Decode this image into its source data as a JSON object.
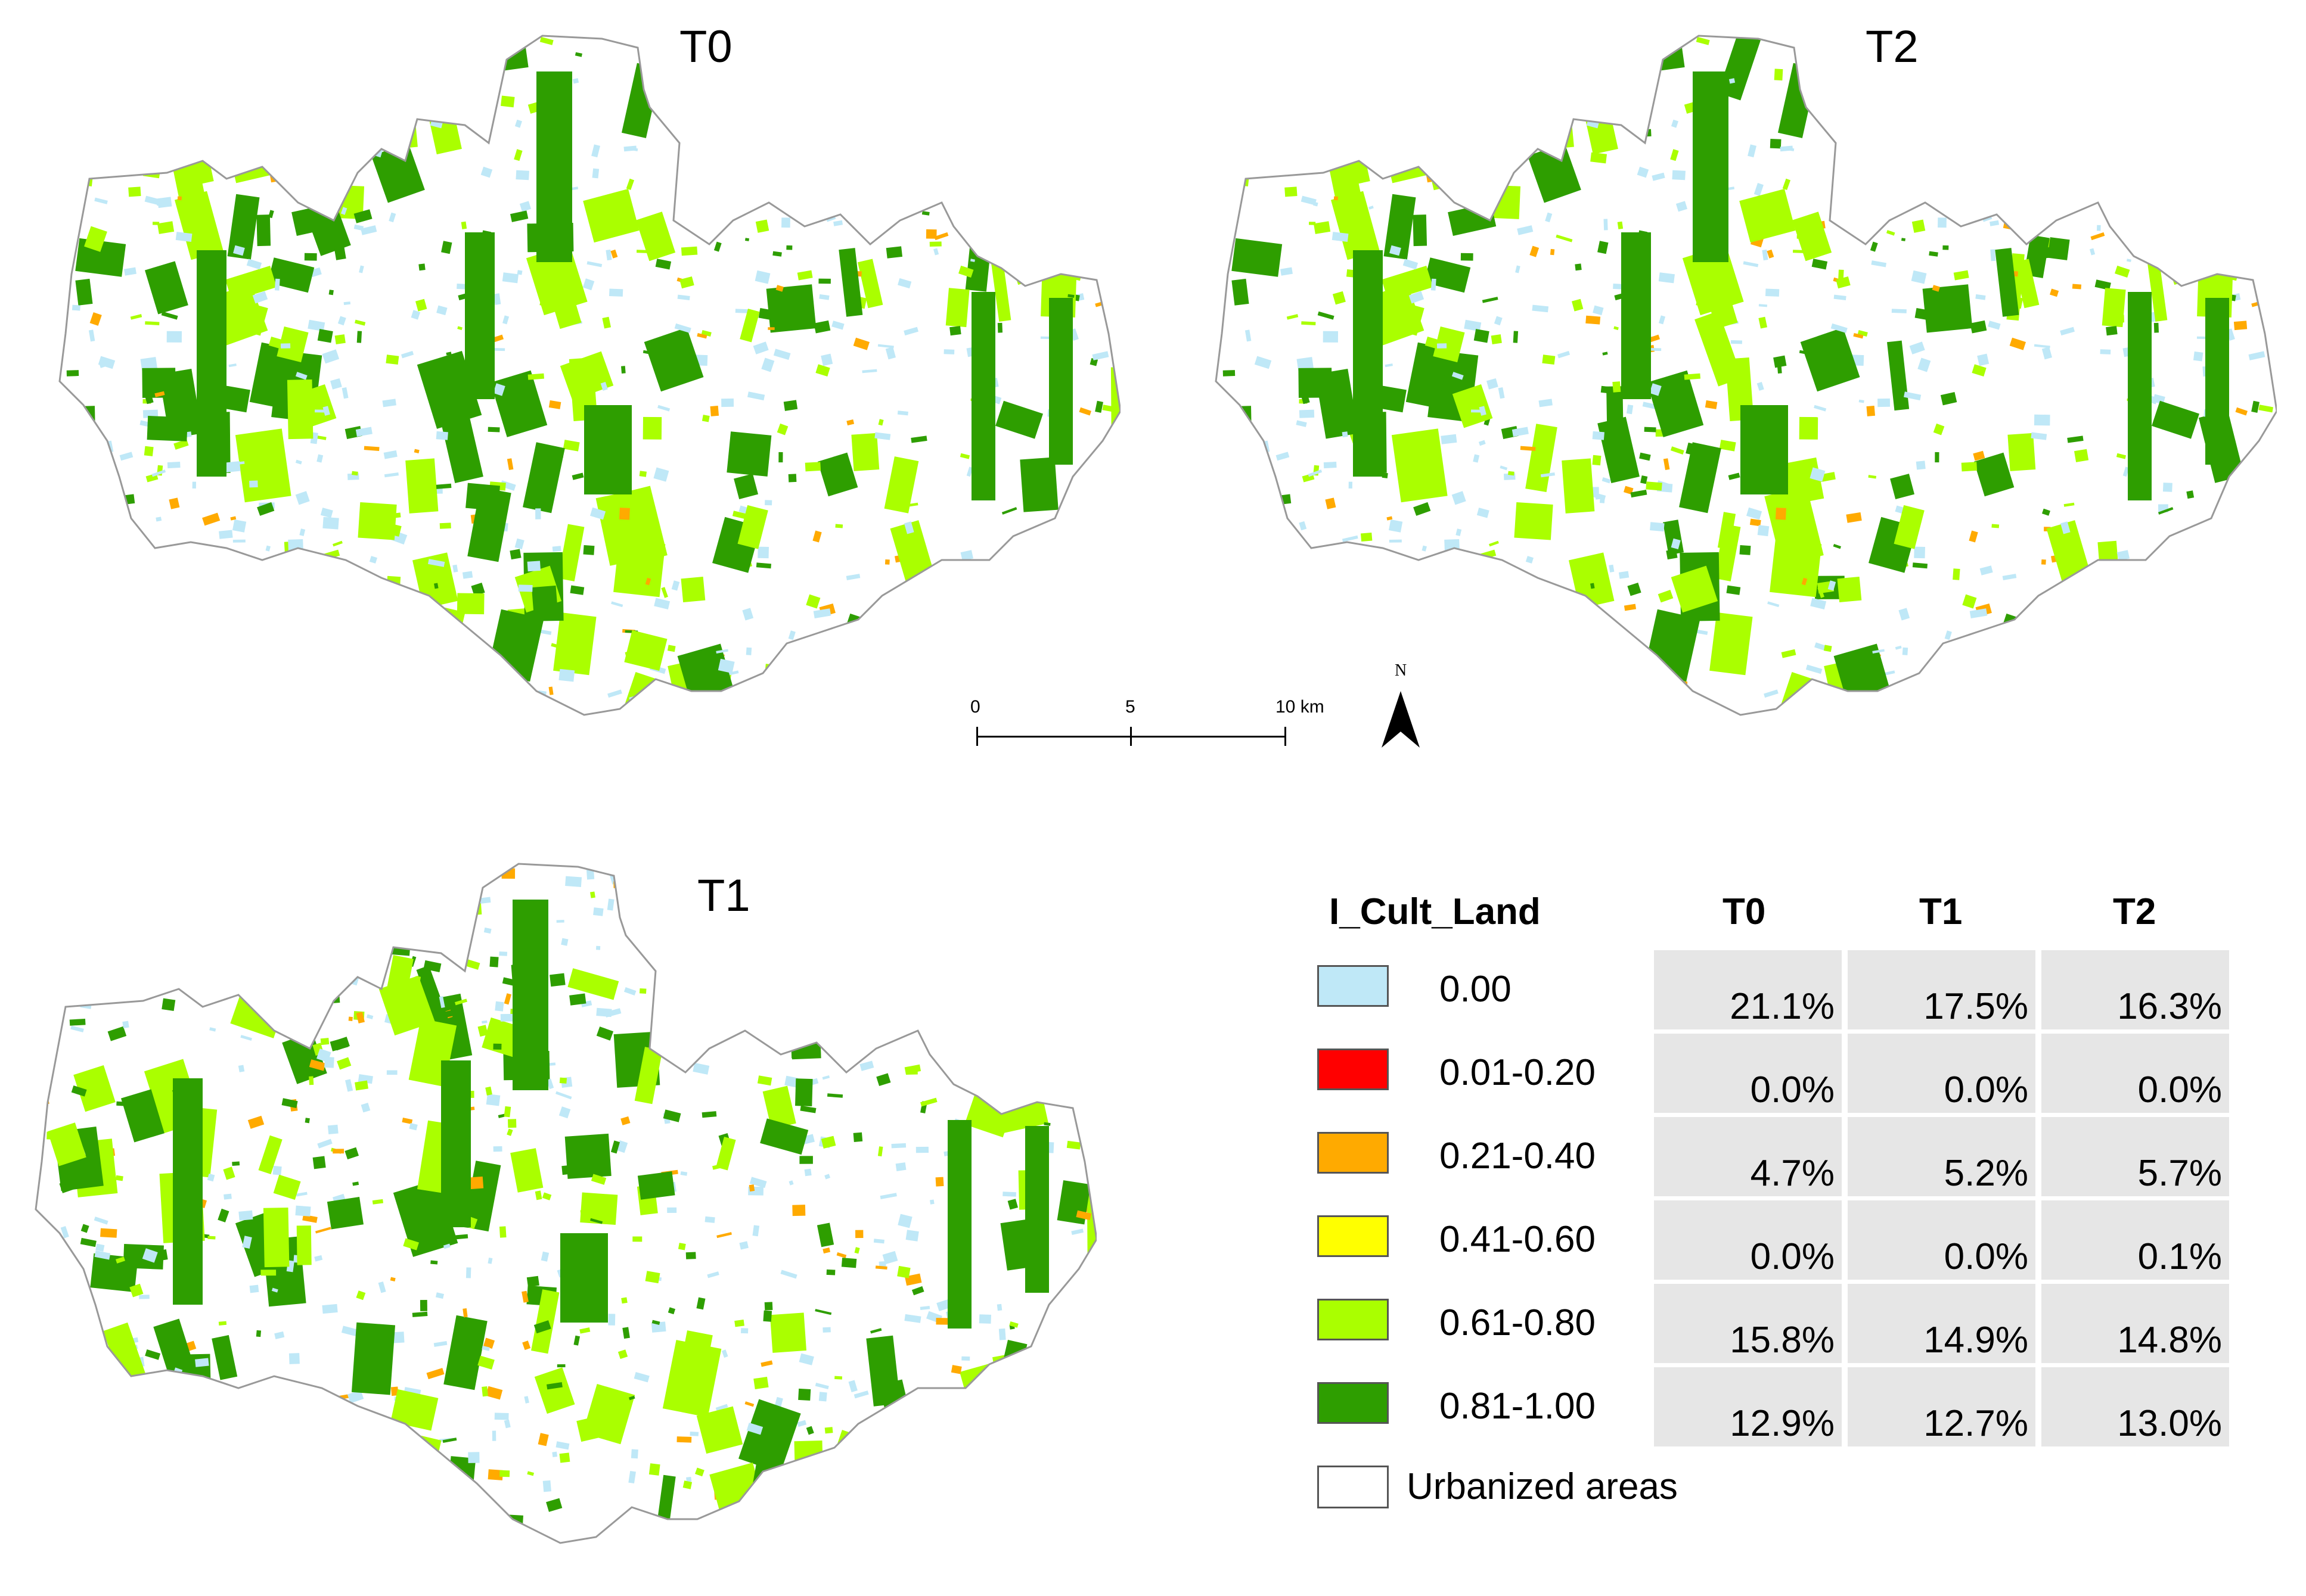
{
  "panels": [
    {
      "id": "T0",
      "title": "T0"
    },
    {
      "id": "T2",
      "title": "T2"
    },
    {
      "id": "T1",
      "title": "T1"
    }
  ],
  "scalebar": {
    "labels": [
      "0",
      "5",
      "10 km"
    ]
  },
  "north_arrow": {
    "label": "N"
  },
  "legend": {
    "title": "I_Cult_Land",
    "columns": [
      "T0",
      "T1",
      "T2"
    ],
    "rows": [
      {
        "class": "0.00",
        "color": "#bfe8f7",
        "values": [
          "21.1%",
          "17.5%",
          "16.3%"
        ]
      },
      {
        "class": "0.01-0.20",
        "color": "#ff0000",
        "values": [
          "0.0%",
          "0.0%",
          "0.0%"
        ]
      },
      {
        "class": "0.21-0.40",
        "color": "#ffaa00",
        "values": [
          "4.7%",
          "5.2%",
          "5.7%"
        ]
      },
      {
        "class": "0.41-0.60",
        "color": "#ffff00",
        "values": [
          "0.0%",
          "0.0%",
          "0.1%"
        ]
      },
      {
        "class": "0.61-0.80",
        "color": "#aaff00",
        "values": [
          "15.8%",
          "14.9%",
          "14.8%"
        ]
      },
      {
        "class": "0.81-1.00",
        "color": "#2e9e00",
        "values": [
          "12.9%",
          "12.7%",
          "13.0%"
        ]
      }
    ],
    "urban": {
      "label": "Urbanized areas",
      "color": "#ffffff"
    }
  }
}
